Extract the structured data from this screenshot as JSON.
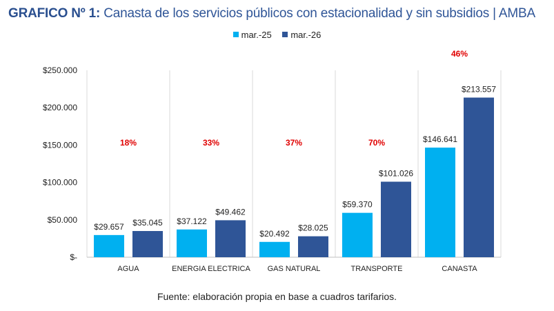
{
  "title": {
    "prefix": "GRAFICO Nº 1:",
    "text": "Canasta de los servicios públicos con estacionalidad y sin subsidios | AMBA"
  },
  "source": "Fuente: elaboración propia en base a cuadros tarifarios.",
  "chart_data": {
    "type": "bar",
    "categories": [
      "AGUA",
      "ENERGIA ELECTRICA",
      "GAS NATURAL",
      "TRANSPORTE",
      "CANASTA"
    ],
    "series": [
      {
        "name": "mar.-25",
        "color": "#00b0f0",
        "values": [
          29657,
          37122,
          20492,
          59370,
          146641
        ],
        "labels": [
          "$29.657",
          "$37.122",
          "$20.492",
          "$59.370",
          "$146.641"
        ]
      },
      {
        "name": "mar.-26",
        "color": "#2f5597",
        "values": [
          35045,
          49462,
          28025,
          101026,
          213557
        ],
        "labels": [
          "$35.045",
          "$49.462",
          "$28.025",
          "$101.026",
          "$213.557"
        ]
      }
    ],
    "annotations": [
      "18%",
      "33%",
      "37%",
      "70%",
      "46%"
    ],
    "annotation_color": "#e00000",
    "yticks": [
      0,
      50000,
      100000,
      150000,
      200000,
      250000
    ],
    "ytick_labels": [
      "$-",
      "$50.000",
      "$100.000",
      "$150.000",
      "$200.000",
      "$250.000"
    ],
    "ylim": [
      0,
      250000
    ],
    "legend": "top",
    "grid": "vertical category separators"
  }
}
